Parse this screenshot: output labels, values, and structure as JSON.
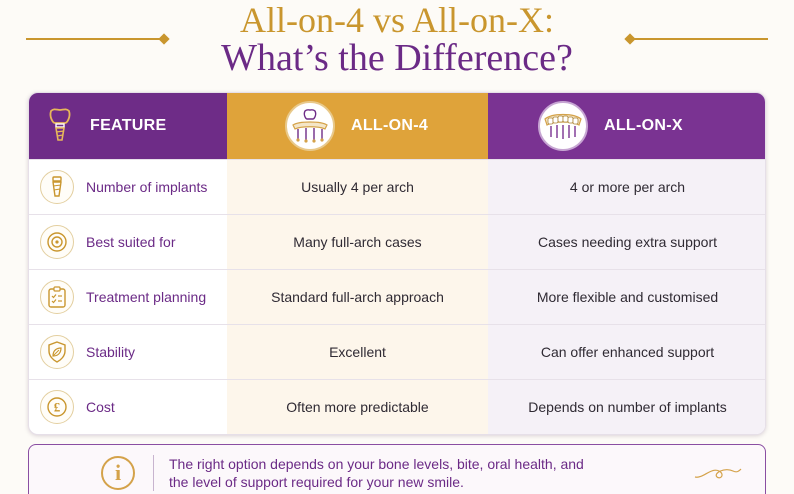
{
  "title": {
    "line1": "All-on-4 vs All-on-X:",
    "line2": "What’s the Difference?"
  },
  "table": {
    "headers": {
      "feature": "FEATURE",
      "all_on_4": "ALL-ON-4",
      "all_on_x": "ALL-ON-X"
    },
    "rows": [
      {
        "feature": "Number of implants",
        "icon": "implant-icon",
        "all_on_4": "Usually 4 per arch",
        "all_on_x": "4 or more per arch"
      },
      {
        "feature": "Best suited for",
        "icon": "target-icon",
        "all_on_4": "Many full-arch cases",
        "all_on_x": "Cases needing extra support"
      },
      {
        "feature": "Treatment planning",
        "icon": "clipboard-checklist-icon",
        "all_on_4": "Standard full-arch approach",
        "all_on_x": "More flexible and customised"
      },
      {
        "feature": "Stability",
        "icon": "shield-leaf-icon",
        "all_on_4": "Excellent",
        "all_on_x": "Can offer enhanced support"
      },
      {
        "feature": "Cost",
        "icon": "pound-coin-icon",
        "all_on_4": "Often more predictable",
        "all_on_x": "Depends on number of implants"
      }
    ]
  },
  "note": {
    "line1": "The right option depends on your bone levels, bite, oral health, and",
    "line2": "the level of support required for your new smile.",
    "icon": "info-icon"
  },
  "colors": {
    "purple": "#6e2c87",
    "gold": "#dfa33a",
    "title_gold": "#c9962e",
    "title_purple": "#6b2a86"
  }
}
